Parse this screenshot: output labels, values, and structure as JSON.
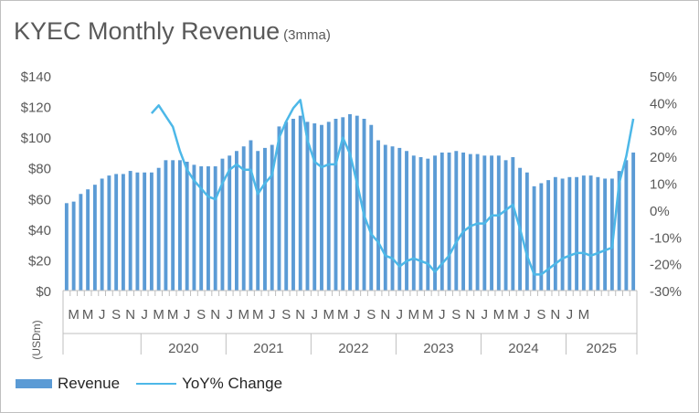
{
  "title": "KYEC Monthly Revenue",
  "subtitle": "(3mma)",
  "colors": {
    "bars": "#5b9bd5",
    "line": "#4db8e8",
    "text": "#595959",
    "grid": "#bfbfbf"
  },
  "chart_data": {
    "type": "bar",
    "title": "KYEC Monthly Revenue",
    "subtitle": "(3mma)",
    "ylabel": "(USDm)",
    "ylim": [
      0,
      140
    ],
    "y2lim": [
      -30,
      50
    ],
    "y_ticks": [
      "$0",
      "$20",
      "$40",
      "$60",
      "$80",
      "$100",
      "$120",
      "$140"
    ],
    "y2_ticks": [
      "-30%",
      "-20%",
      "-10%",
      "0%",
      "10%",
      "20%",
      "30%",
      "40%",
      "50%"
    ],
    "month_labels": [
      "M",
      "M",
      "J",
      "S",
      "N",
      "J",
      "M",
      "M",
      "J",
      "S",
      "N",
      "J",
      "M",
      "M",
      "J",
      "S",
      "N",
      "J",
      "M",
      "M",
      "J",
      "S",
      "N",
      "J",
      "M",
      "M",
      "J",
      "S",
      "N",
      "J",
      "M",
      "M",
      "J",
      "S",
      "N",
      "J",
      "M"
    ],
    "years": [
      "2020",
      "2021",
      "2022",
      "2023",
      "2024",
      "2025"
    ],
    "legend_position": "bottom-left",
    "series": [
      {
        "name": "Revenue",
        "type": "bar",
        "axis": "left",
        "values": [
          57,
          58,
          63,
          66,
          69,
          73,
          75,
          76,
          76,
          78,
          77,
          77,
          77,
          80,
          85,
          85,
          85,
          84,
          82,
          81,
          81,
          81,
          86,
          88,
          91,
          94,
          98,
          91,
          93,
          95,
          107,
          110,
          112,
          114,
          110,
          109,
          108,
          110,
          112,
          113,
          115,
          114,
          112,
          108,
          98,
          95,
          94,
          93,
          91,
          88,
          87,
          86,
          88,
          90,
          90,
          91,
          90,
          89,
          89,
          88,
          88,
          88,
          85,
          87,
          80,
          77,
          68,
          70,
          72,
          74,
          73,
          74,
          74,
          75,
          75,
          74,
          73,
          73,
          78,
          85,
          90
        ]
      },
      {
        "name": "YoY% Change",
        "type": "line",
        "axis": "right",
        "values": [
          null,
          null,
          null,
          null,
          null,
          null,
          null,
          null,
          null,
          null,
          null,
          null,
          36,
          39,
          35,
          31,
          22,
          15,
          11,
          8,
          5,
          4,
          10,
          15,
          17,
          15,
          15,
          6,
          10,
          13,
          27,
          33,
          38,
          41,
          26,
          18,
          16,
          17,
          17,
          27,
          21,
          10,
          -2,
          -9,
          -12,
          -17,
          -18,
          -21,
          -19,
          -18,
          -19,
          -20,
          -23,
          -20,
          -17,
          -12,
          -8,
          -6,
          -5,
          -5,
          -2,
          -2,
          0,
          2,
          -7,
          -17,
          -24,
          -24,
          -22,
          -20,
          -18,
          -17,
          -16,
          -16,
          -17,
          -16,
          -15,
          -14,
          10,
          20,
          34
        ]
      }
    ]
  }
}
